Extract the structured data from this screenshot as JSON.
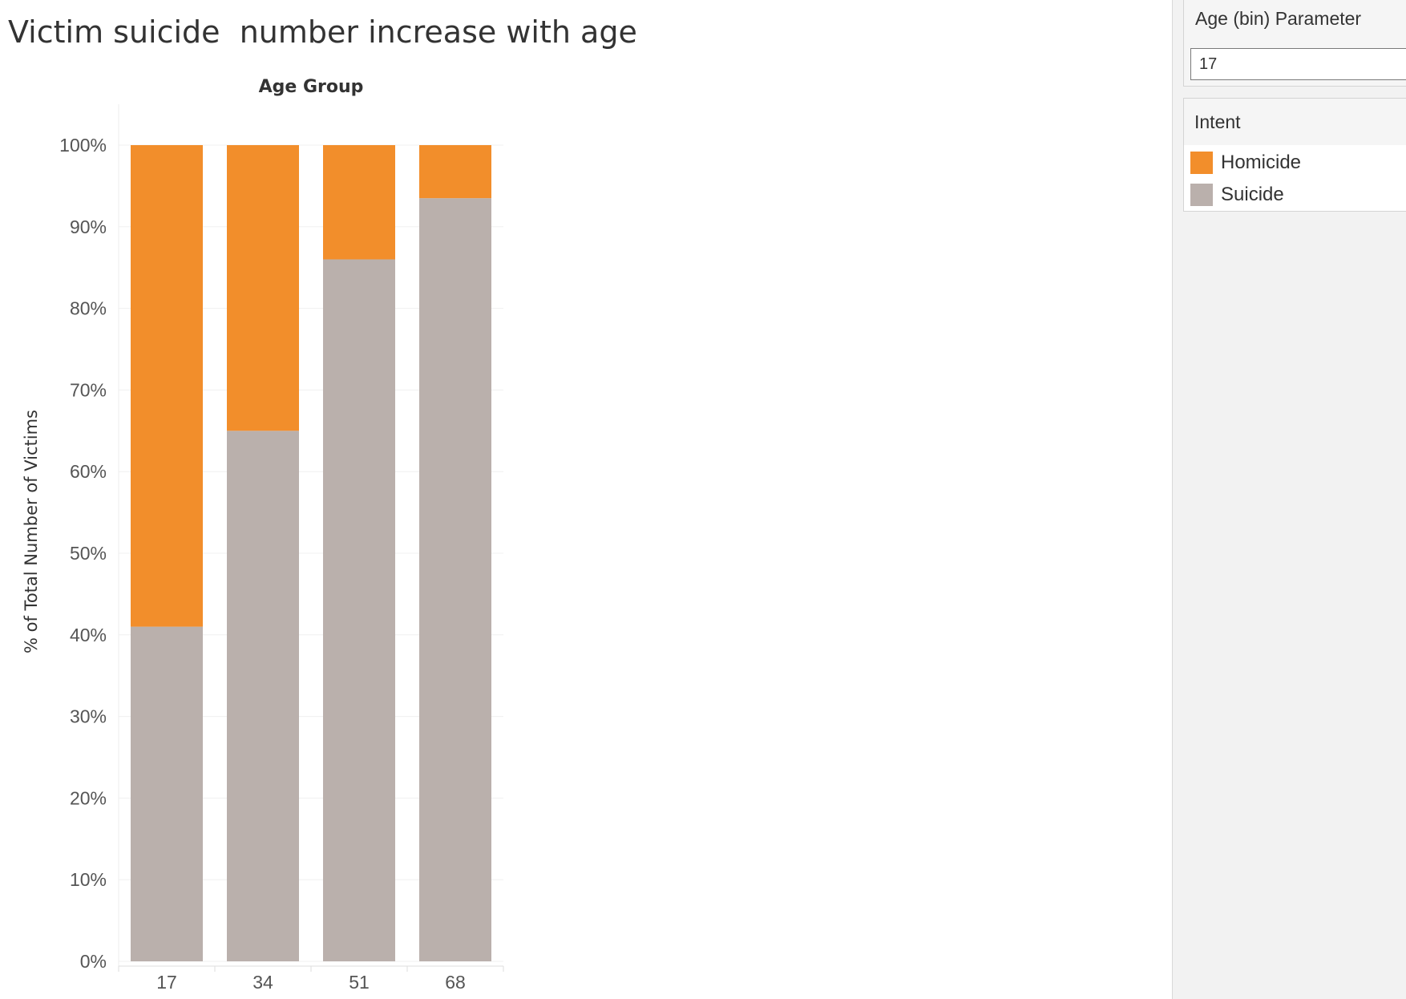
{
  "title": "Victim suicide  number increase with age",
  "parameter": {
    "title": "Age (bin) Parameter",
    "value": "17"
  },
  "legend": {
    "title": "Intent",
    "items": [
      {
        "label": "Homicide",
        "color": "#f28e2b"
      },
      {
        "label": "Suicide",
        "color": "#bab0ac"
      }
    ]
  },
  "chart_data": {
    "type": "bar",
    "stacked": true,
    "column_header": "Age Group",
    "ylabel": "% of Total Number of Victims",
    "categories": [
      "17",
      "34",
      "51",
      "68"
    ],
    "series": [
      {
        "name": "Suicide",
        "color": "#bab0ac",
        "values": [
          41,
          65,
          86,
          93.5
        ]
      },
      {
        "name": "Homicide",
        "color": "#f28e2b",
        "values": [
          59,
          35,
          14,
          6.5
        ]
      }
    ],
    "ylim": [
      0,
      100
    ],
    "yticks": [
      "0%",
      "10%",
      "20%",
      "30%",
      "40%",
      "50%",
      "60%",
      "70%",
      "80%",
      "90%",
      "100%"
    ],
    "grid": true
  }
}
